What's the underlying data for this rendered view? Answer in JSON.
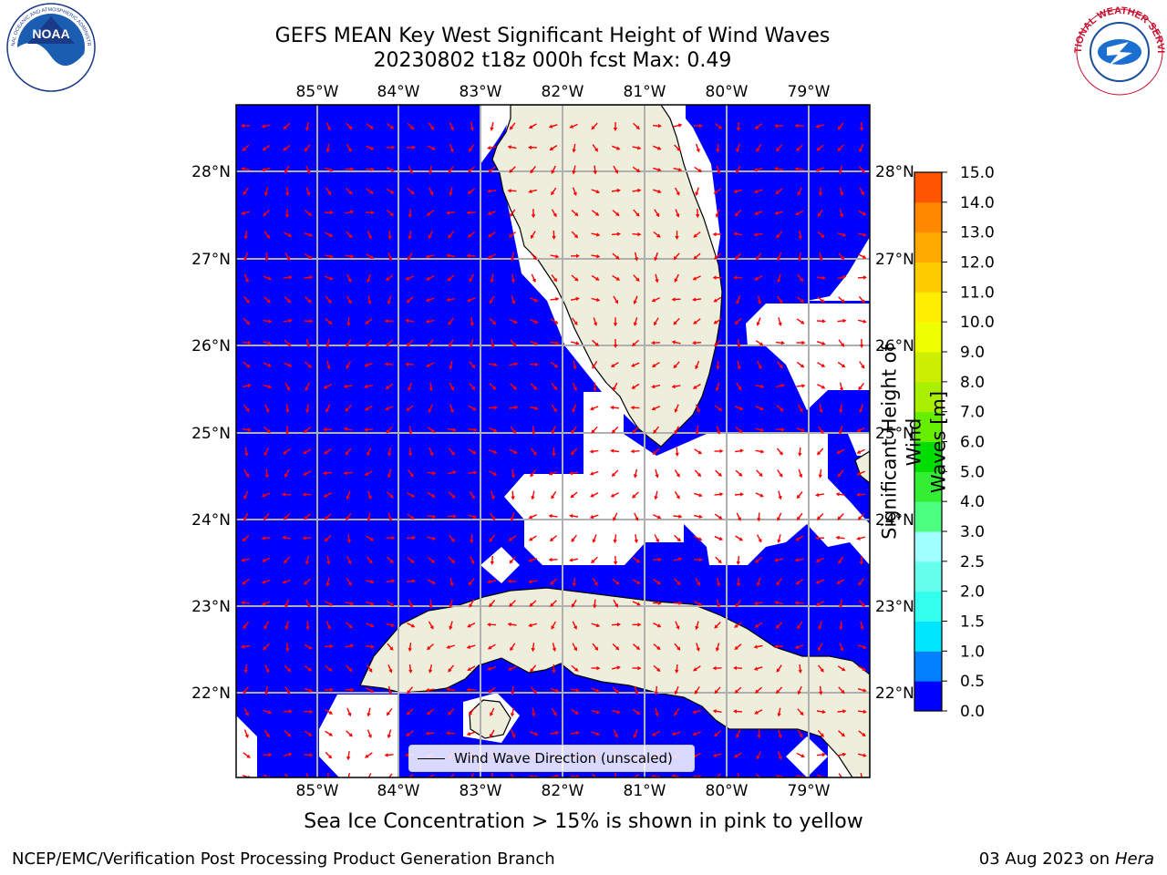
{
  "title_line1": "GEFS MEAN Key West Significant Height of Wind Waves",
  "title_line2": "20230802 t18z 000h fcst   Max: 0.49",
  "lon_labels": [
    "85°W",
    "84°W",
    "83°W",
    "82°W",
    "81°W",
    "80°W",
    "79°W"
  ],
  "lat_labels": [
    "28°N",
    "27°N",
    "26°N",
    "25°N",
    "24°N",
    "23°N",
    "22°N"
  ],
  "legend_label": "Wind Wave Direction (unscaled)",
  "colorbar": {
    "title_line1": "Significant Height of Wind",
    "title_line2": "Waves [m]",
    "tick_labels": [
      "0.0",
      "0.5",
      "1.0",
      "1.5",
      "2.0",
      "2.5",
      "3.0",
      "4.0",
      "5.0",
      "6.0",
      "7.0",
      "8.0",
      "9.0",
      "10.0",
      "11.0",
      "12.0",
      "13.0",
      "14.0",
      "15.0"
    ],
    "colors": [
      "#0000ff",
      "#0080ff",
      "#00e6ff",
      "#33ffee",
      "#66ffee",
      "#a0ffff",
      "#4dff80",
      "#33ee33",
      "#00dd00",
      "#66ee00",
      "#aaee00",
      "#ccee00",
      "#eeff00",
      "#ffee00",
      "#ffcc00",
      "#ffaa00",
      "#ff8800",
      "#ff5500",
      "#ff3300",
      "#ff0000"
    ]
  },
  "footnote": "Sea Ice Concentration > 15% is shown in pink to yellow",
  "credit_left": "NCEP/EMC/Verification Post Processing Product Generation Branch",
  "credit_date": "03 Aug 2023 on",
  "credit_host": "Hera",
  "colors": {
    "water": "#0000ff",
    "land": "#eeeedd",
    "arrow": "#ff0000",
    "grid": "#b0b0b0"
  },
  "logos": {
    "left": "NOAA",
    "right": "NATIONAL WEATHER SERVICE"
  }
}
